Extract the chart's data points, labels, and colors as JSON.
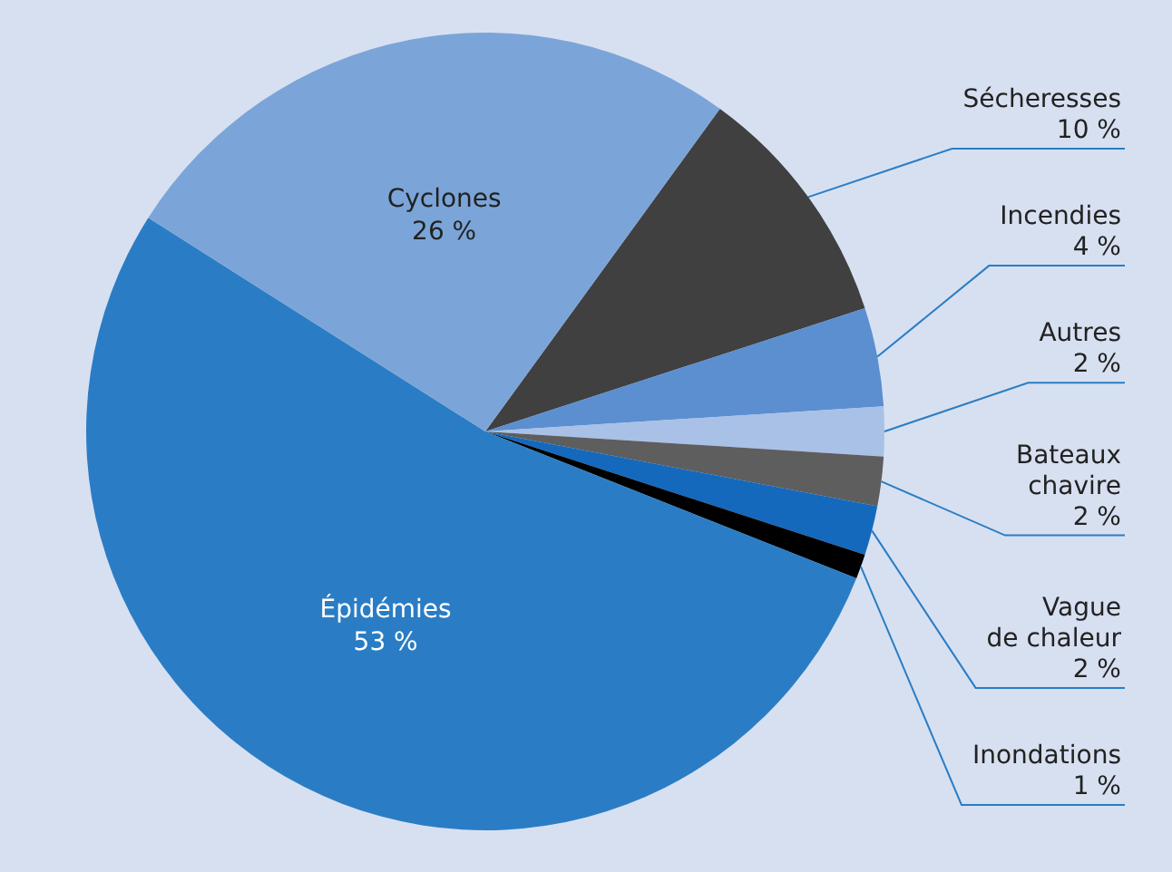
{
  "chart_data": {
    "type": "pie",
    "categories": [
      "Sécheresses",
      "Incendies",
      "Autres",
      "Bateaux\nchavire",
      "Vague\nde chaleur",
      "Inondations",
      "Épidémies",
      "Cyclones"
    ],
    "values": [
      10,
      4,
      2,
      2,
      2,
      1,
      53,
      26
    ],
    "value_labels": [
      "10 %",
      "4 %",
      "2 %",
      "2 %",
      "2 %",
      "1 %",
      "53 %",
      "26 %"
    ],
    "colors": [
      "#404040",
      "#5b8fd0",
      "#a9c1e7",
      "#5e5e5e",
      "#1469bd",
      "#000000",
      "#2a7dc4",
      "#7ba5d8"
    ]
  }
}
